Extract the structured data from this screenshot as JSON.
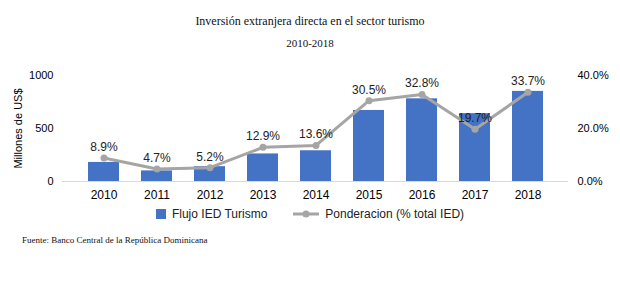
{
  "chart_data": {
    "type": "bar",
    "title": "Inversión extranjera directa en el sector turismo",
    "subtitle": "2010-2018",
    "caption": "Fuente: Banco Central de la República Dominicana",
    "ylabel": "Millones de US$",
    "categories": [
      "2010",
      "2011",
      "2012",
      "2013",
      "2014",
      "2015",
      "2016",
      "2017",
      "2018"
    ],
    "series": [
      {
        "name": "Flujo IED Turismo",
        "type": "bar",
        "color": "#4472c4",
        "values": [
          180,
          100,
          140,
          260,
          290,
          670,
          780,
          640,
          850
        ]
      },
      {
        "name": "Ponderacion (% total IED)",
        "type": "line",
        "color": "#a5a5a5",
        "marker": "circle",
        "axis": "y2",
        "values": [
          8.9,
          4.7,
          5.2,
          12.9,
          13.6,
          30.5,
          32.8,
          19.7,
          33.7
        ],
        "value_labels": [
          "8.9%",
          "4.7%",
          "5.2%",
          "12.9%",
          "13.6%",
          "30.5%",
          "32.8%",
          "19.7%",
          "33.7%"
        ]
      }
    ],
    "ylim": [
      0,
      1000
    ],
    "yticks": [
      0,
      500,
      1000
    ],
    "y2lim": [
      0,
      40
    ],
    "y2ticks": [
      {
        "value": 0,
        "label": "0.0%"
      },
      {
        "value": 20,
        "label": "20.0%"
      },
      {
        "value": 40,
        "label": "40.0%"
      }
    ],
    "data_labels": true,
    "legend": "bottom",
    "grid": false
  }
}
